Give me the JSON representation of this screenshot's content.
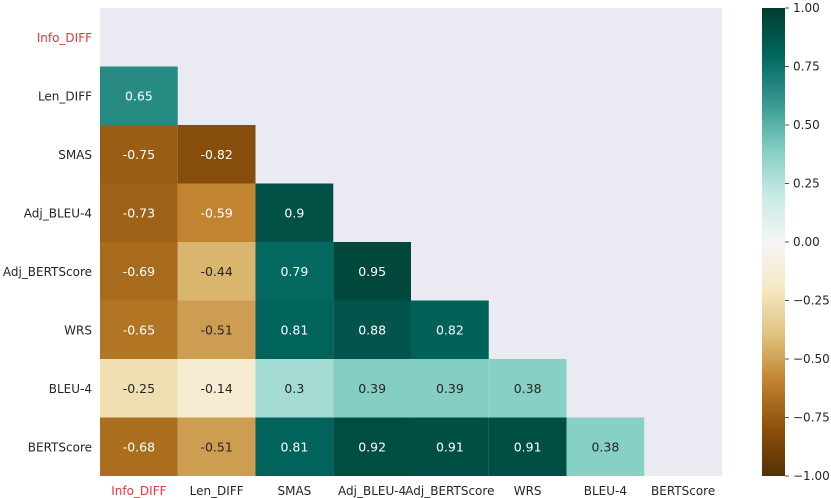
{
  "chart_data": {
    "type": "heatmap",
    "title": "",
    "labels": [
      "Info_DIFF",
      "Len_DIFF",
      "SMAS",
      "Adj_BLEU-4",
      "Adj_BERTScore",
      "WRS",
      "BLEU-4",
      "BERTScore"
    ],
    "highlight_label": "Info_DIFF",
    "highlight_color": "#e8343a",
    "matrix": [
      [
        null,
        null,
        null,
        null,
        null,
        null,
        null,
        null
      ],
      [
        0.65,
        null,
        null,
        null,
        null,
        null,
        null,
        null
      ],
      [
        -0.75,
        -0.82,
        null,
        null,
        null,
        null,
        null,
        null
      ],
      [
        -0.73,
        -0.59,
        0.9,
        null,
        null,
        null,
        null,
        null
      ],
      [
        -0.69,
        -0.44,
        0.79,
        0.95,
        null,
        null,
        null,
        null
      ],
      [
        -0.65,
        -0.51,
        0.81,
        0.88,
        0.82,
        null,
        null,
        null
      ],
      [
        -0.25,
        -0.14,
        0.3,
        0.39,
        0.39,
        0.38,
        null,
        null
      ],
      [
        -0.68,
        -0.51,
        0.81,
        0.92,
        0.91,
        0.91,
        0.38,
        null
      ]
    ],
    "annotation_texts": [
      [
        null,
        null,
        null,
        null,
        null,
        null,
        null,
        null
      ],
      [
        "0.65",
        null,
        null,
        null,
        null,
        null,
        null,
        null
      ],
      [
        "-0.75",
        "-0.82",
        null,
        null,
        null,
        null,
        null,
        null
      ],
      [
        "-0.73",
        "-0.59",
        "0.9",
        null,
        null,
        null,
        null,
        null
      ],
      [
        "-0.69",
        "-0.44",
        "0.79",
        "0.95",
        null,
        null,
        null,
        null
      ],
      [
        "-0.65",
        "-0.51",
        "0.81",
        "0.88",
        "0.82",
        null,
        null,
        null
      ],
      [
        "-0.25",
        "-0.14",
        "0.3",
        "0.39",
        "0.39",
        "0.38",
        null,
        null
      ],
      [
        "-0.68",
        "-0.51",
        "0.81",
        "0.92",
        "0.91",
        "0.91",
        "0.38",
        null
      ]
    ],
    "colormap": "BrBG",
    "vmin": -1.0,
    "vmax": 1.0,
    "colorbar_ticks": [
      1.0,
      0.75,
      0.5,
      0.25,
      0.0,
      -0.25,
      -0.5,
      -0.75,
      -1.0
    ],
    "colorbar_tick_labels": [
      "1.00",
      "0.75",
      "0.50",
      "0.25",
      "0.00",
      "−0.25",
      "−0.50",
      "−0.75",
      "−1.00"
    ],
    "mask": "upper-triangle-including-diagonal",
    "background_color": "#eaeaf2"
  }
}
